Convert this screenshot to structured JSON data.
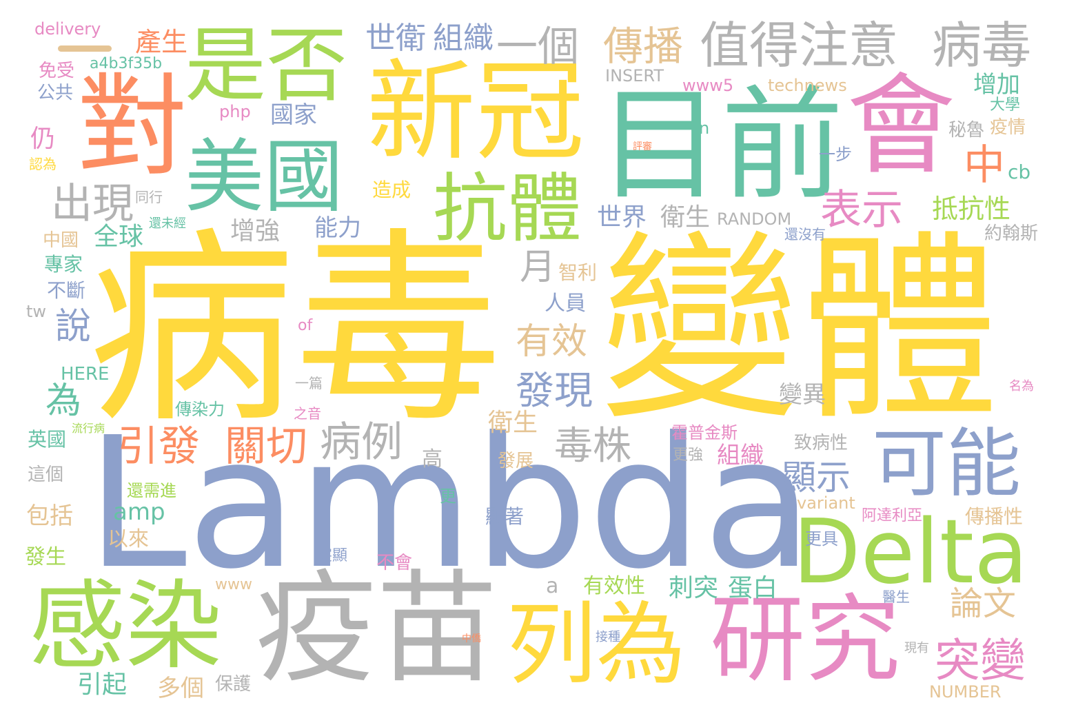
{
  "palette": {
    "yellow": "#FFD93D",
    "blue": "#8DA0CB",
    "green": "#A6D854",
    "teal": "#66C2A5",
    "orange": "#FC8D62",
    "pink": "#E78AC3",
    "tan": "#E5C494",
    "gray": "#B3B3B3"
  },
  "words": [
    {
      "text": "病毒",
      "color": "yellow"
    },
    {
      "text": "變體",
      "color": "yellow"
    },
    {
      "text": "Lambda",
      "color": "blue"
    },
    {
      "text": "目前",
      "color": "teal"
    },
    {
      "text": "新冠",
      "color": "yellow"
    },
    {
      "text": "對",
      "color": "orange"
    },
    {
      "text": "會",
      "color": "pink"
    },
    {
      "text": "疫苗",
      "color": "gray"
    },
    {
      "text": "研究",
      "color": "pink"
    },
    {
      "text": "列為",
      "color": "yellow"
    },
    {
      "text": "感染",
      "color": "green"
    },
    {
      "text": "Delta",
      "color": "green"
    },
    {
      "text": "可能",
      "color": "blue"
    },
    {
      "text": "美國",
      "color": "teal"
    },
    {
      "text": "是否",
      "color": "green"
    },
    {
      "text": "抗體",
      "color": "green"
    },
    {
      "text": "值得注意",
      "color": "gray"
    },
    {
      "text": "病毒",
      "color": "gray"
    },
    {
      "text": "一個",
      "color": "gray"
    },
    {
      "text": "傳播",
      "color": "tan"
    },
    {
      "text": "世衛",
      "color": "blue"
    },
    {
      "text": "組織",
      "color": "blue"
    },
    {
      "text": "產生",
      "color": "orange"
    },
    {
      "text": "delivery",
      "color": "pink"
    },
    {
      "text": "a4b3f35b",
      "color": "teal"
    },
    {
      "text": "出現",
      "color": "gray"
    },
    {
      "text": "表示",
      "color": "pink"
    },
    {
      "text": "中",
      "color": "orange"
    },
    {
      "text": "增加",
      "color": "teal"
    },
    {
      "text": "抵抗性",
      "color": "green"
    },
    {
      "text": "引發",
      "color": "orange"
    },
    {
      "text": "關切",
      "color": "orange"
    },
    {
      "text": "病例",
      "color": "gray"
    },
    {
      "text": "毒株",
      "color": "gray"
    },
    {
      "text": "發現",
      "color": "blue"
    },
    {
      "text": "有效",
      "color": "tan"
    },
    {
      "text": "月",
      "color": "gray"
    },
    {
      "text": "說",
      "color": "blue"
    },
    {
      "text": "為",
      "color": "teal"
    },
    {
      "text": "突變",
      "color": "pink"
    },
    {
      "text": "論文",
      "color": "tan"
    },
    {
      "text": "顯示",
      "color": "blue"
    },
    {
      "text": "變異",
      "color": "gray"
    },
    {
      "text": "全球",
      "color": "teal"
    },
    {
      "text": "增強",
      "color": "gray"
    },
    {
      "text": "能力",
      "color": "blue"
    },
    {
      "text": "世界",
      "color": "blue"
    },
    {
      "text": "衛生",
      "color": "gray"
    },
    {
      "text": "RANDOM",
      "color": "gray"
    },
    {
      "text": "約翰斯",
      "color": "gray"
    },
    {
      "text": "www5",
      "color": "pink"
    },
    {
      "text": "technews",
      "color": "tan"
    },
    {
      "text": "INSERT",
      "color": "gray"
    },
    {
      "text": "php",
      "color": "pink"
    },
    {
      "text": "國家",
      "color": "blue"
    },
    {
      "text": "免受",
      "color": "pink"
    },
    {
      "text": "公共",
      "color": "blue"
    },
    {
      "text": "仍",
      "color": "pink"
    },
    {
      "text": "認為",
      "color": "yellow"
    },
    {
      "text": "造成",
      "color": "yellow"
    },
    {
      "text": "同行",
      "color": "gray"
    },
    {
      "text": "中國",
      "color": "tan"
    },
    {
      "text": "專家",
      "color": "teal"
    },
    {
      "text": "不斷",
      "color": "blue"
    },
    {
      "text": "tw",
      "color": "gray"
    },
    {
      "text": "智利",
      "color": "tan"
    },
    {
      "text": "人員",
      "color": "blue"
    },
    {
      "text": "HERE",
      "color": "teal"
    },
    {
      "text": "傳染力",
      "color": "teal"
    },
    {
      "text": "英國",
      "color": "teal"
    },
    {
      "text": "包括",
      "color": "tan"
    },
    {
      "text": "amp",
      "color": "teal"
    },
    {
      "text": "以來",
      "color": "tan"
    },
    {
      "text": "發生",
      "color": "green"
    },
    {
      "text": "引起",
      "color": "teal"
    },
    {
      "text": "多個",
      "color": "tan"
    },
    {
      "text": "保護",
      "color": "gray"
    },
    {
      "text": "www",
      "color": "tan"
    },
    {
      "text": "a",
      "color": "gray"
    },
    {
      "text": "不會",
      "color": "pink"
    },
    {
      "text": "高",
      "color": "gray"
    },
    {
      "text": "衛生",
      "color": "tan"
    },
    {
      "text": "發展",
      "color": "tan"
    },
    {
      "text": "更",
      "color": "teal"
    },
    {
      "text": "顯著",
      "color": "blue"
    },
    {
      "text": "組織",
      "color": "pink"
    },
    {
      "text": "更強",
      "color": "gray"
    },
    {
      "text": "霍普金斯",
      "color": "pink"
    },
    {
      "text": "致病性",
      "color": "gray"
    },
    {
      "text": "variant",
      "color": "tan"
    },
    {
      "text": "傳播性",
      "color": "tan"
    },
    {
      "text": "阿達利亞",
      "color": "pink"
    },
    {
      "text": "更具",
      "color": "blue"
    },
    {
      "text": "刺突",
      "color": "teal"
    },
    {
      "text": "蛋白",
      "color": "teal"
    },
    {
      "text": "有效性",
      "color": "green"
    },
    {
      "text": "NUMBER",
      "color": "tan"
    },
    {
      "text": "還沒有",
      "color": "blue"
    },
    {
      "text": "大學",
      "color": "teal"
    },
    {
      "text": "疫情",
      "color": "tan"
    },
    {
      "text": "秘魯",
      "color": "gray"
    },
    {
      "text": "cb",
      "color": "teal"
    },
    {
      "text": "一步",
      "color": "blue"
    },
    {
      "text": "n",
      "color": "teal"
    },
    {
      "text": "還需進",
      "color": "green"
    },
    {
      "text": "這個",
      "color": "gray"
    },
    {
      "text": "突顯",
      "color": "blue"
    },
    {
      "text": "一篇",
      "color": "gray"
    },
    {
      "text": "之音",
      "color": "pink"
    },
    {
      "text": "of",
      "color": "pink"
    },
    {
      "text": "流行病",
      "color": "green"
    },
    {
      "text": "名為",
      "color": "pink"
    },
    {
      "text": "醫生",
      "color": "blue"
    },
    {
      "text": "現有",
      "color": "gray"
    },
    {
      "text": "接種",
      "color": "blue"
    },
    {
      "text": "中僑",
      "color": "orange"
    },
    {
      "text": "評審",
      "color": "orange"
    },
    {
      "text": "還未經",
      "color": "teal"
    }
  ]
}
